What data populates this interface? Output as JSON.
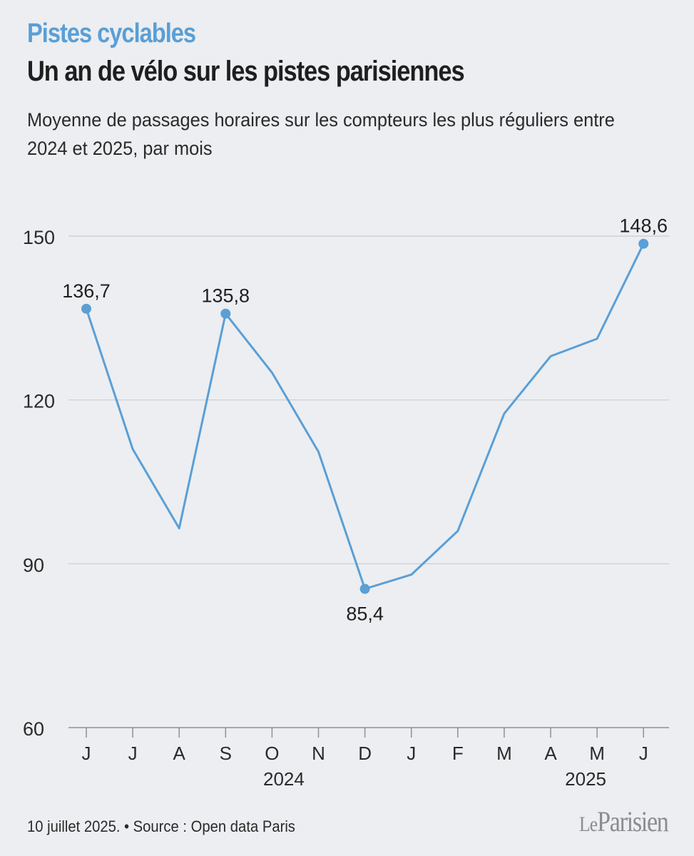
{
  "header": {
    "kicker": "Pistes cyclables",
    "title": "Un an de vélo sur les pistes parisiennes",
    "subtitle": "Moyenne de passages horaires sur les compteurs les plus réguliers entre 2024 et 2025, par mois"
  },
  "chart_data": {
    "type": "line",
    "categories": [
      "J",
      "J",
      "A",
      "S",
      "O",
      "N",
      "D",
      "J",
      "F",
      "M",
      "A",
      "M",
      "J"
    ],
    "year_labels": [
      {
        "label": "2024",
        "category_index": 4.3
      },
      {
        "label": "2025",
        "category_index": 10.8
      }
    ],
    "series": [
      {
        "name": "Moyenne de passages horaires",
        "values": [
          136.7,
          111.0,
          96.5,
          135.8,
          125.0,
          110.5,
          85.4,
          88.0,
          96.0,
          117.5,
          128.0,
          131.2,
          148.6
        ]
      }
    ],
    "data_labels": [
      {
        "index": 0,
        "text": "136,7",
        "position": "above"
      },
      {
        "index": 3,
        "text": "135,8",
        "position": "above"
      },
      {
        "index": 6,
        "text": "85,4",
        "position": "below"
      },
      {
        "index": 12,
        "text": "148,6",
        "position": "above"
      }
    ],
    "y_ticks": [
      60,
      90,
      120,
      150
    ],
    "y_tick_labels": [
      "60",
      "90",
      "120",
      "150"
    ],
    "ylim": [
      60,
      150
    ],
    "grid": true,
    "line_color": "#5a9fd6",
    "grid_color": "#c9ccd1"
  },
  "footer": {
    "date": "10 juillet 2025.",
    "bullet": "•",
    "source": "Source : Open data Paris"
  },
  "brand": {
    "logo_part1": "Le",
    "logo_part2": "Parisien"
  }
}
